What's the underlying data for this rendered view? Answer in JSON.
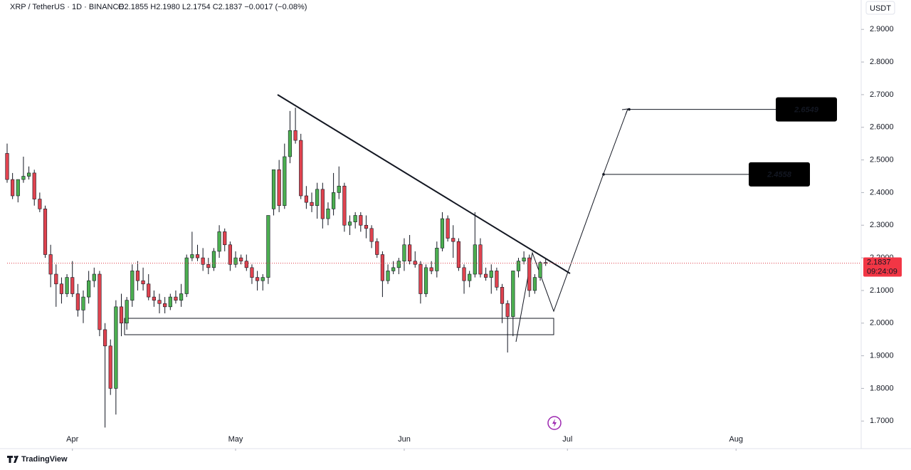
{
  "chart_data": {
    "type": "candlestick",
    "title": "XRP / TetherUS · 1D · BINANCE",
    "ohlc_text": "O2.1855 H2.1980 L2.1754 C2.1837 −0.0017 (−0.08%)",
    "currency": "USDT",
    "up_color": "#4caf50",
    "down_color": "#e0434f",
    "open": [
      2.52,
      2.44,
      2.39,
      2.44,
      2.45,
      2.46,
      2.38,
      2.35,
      2.21,
      2.15,
      2.12,
      2.09,
      2.14,
      2.09,
      2.04,
      2.08,
      2.13,
      2.15,
      1.98,
      1.93,
      1.8,
      2.05,
      2.0,
      2.07,
      2.16,
      2.13,
      2.12,
      2.08,
      2.07,
      2.06,
      2.05,
      2.08,
      2.07,
      2.09,
      2.2,
      2.21,
      2.2,
      2.18,
      2.17,
      2.22,
      2.28,
      2.24,
      2.18,
      2.2,
      2.19,
      2.17,
      2.14,
      2.13,
      2.14,
      2.35,
      2.47,
      2.36,
      2.51,
      2.59,
      2.56,
      2.39,
      2.37,
      2.36,
      2.41,
      2.32,
      2.35,
      2.4,
      2.42,
      2.3,
      2.31,
      2.33,
      2.3,
      2.29,
      2.25,
      2.21,
      2.13,
      2.16,
      2.17,
      2.19,
      2.24,
      2.19,
      2.18,
      2.09,
      2.17,
      2.16,
      2.23,
      2.32,
      2.26,
      2.25,
      2.17,
      2.13,
      2.15,
      2.24,
      2.15,
      2.14,
      2.16,
      2.11,
      2.06,
      2.02,
      2.16,
      2.19,
      2.2,
      2.1,
      2.14,
      2.1855
    ],
    "high": [
      2.55,
      2.46,
      2.44,
      2.51,
      2.48,
      2.47,
      2.4,
      2.36,
      2.24,
      2.18,
      2.14,
      2.15,
      2.19,
      2.12,
      2.1,
      2.16,
      2.17,
      2.16,
      2.0,
      1.95,
      2.07,
      2.09,
      2.08,
      2.18,
      2.19,
      2.17,
      2.15,
      2.1,
      2.09,
      2.08,
      2.09,
      2.1,
      2.12,
      2.21,
      2.28,
      2.24,
      2.23,
      2.2,
      2.23,
      2.3,
      2.29,
      2.25,
      2.22,
      2.21,
      2.21,
      2.18,
      2.16,
      2.15,
      2.33,
      2.47,
      2.5,
      2.55,
      2.65,
      2.66,
      2.58,
      2.42,
      2.4,
      2.43,
      2.43,
      2.37,
      2.46,
      2.48,
      2.43,
      2.33,
      2.34,
      2.34,
      2.33,
      2.3,
      2.26,
      2.22,
      2.18,
      2.19,
      2.2,
      2.26,
      2.27,
      2.22,
      2.19,
      2.18,
      2.19,
      2.25,
      2.34,
      2.33,
      2.3,
      2.26,
      2.18,
      2.16,
      2.34,
      2.26,
      2.17,
      2.18,
      2.17,
      2.12,
      2.07,
      2.16,
      2.2,
      2.22,
      2.21,
      2.15,
      2.19,
      2.198
    ],
    "low": [
      2.43,
      2.38,
      2.37,
      2.43,
      2.44,
      2.36,
      2.34,
      2.2,
      2.11,
      2.05,
      2.06,
      2.08,
      2.08,
      2.02,
      2.0,
      2.06,
      2.11,
      1.96,
      1.68,
      1.78,
      1.72,
      1.96,
      1.98,
      2.05,
      2.1,
      2.1,
      2.07,
      2.05,
      2.03,
      2.03,
      2.04,
      2.06,
      2.05,
      2.08,
      2.19,
      2.19,
      2.16,
      2.15,
      2.16,
      2.2,
      2.22,
      2.16,
      2.17,
      2.18,
      2.16,
      2.12,
      2.1,
      2.1,
      2.12,
      2.33,
      2.34,
      2.35,
      2.49,
      2.55,
      2.38,
      2.35,
      2.34,
      2.32,
      2.29,
      2.3,
      2.33,
      2.38,
      2.28,
      2.27,
      2.29,
      2.28,
      2.26,
      2.23,
      2.2,
      2.08,
      2.12,
      2.15,
      2.15,
      2.16,
      2.18,
      2.17,
      2.06,
      2.08,
      2.15,
      2.14,
      2.22,
      2.25,
      2.2,
      2.16,
      2.09,
      2.11,
      2.14,
      2.14,
      2.13,
      2.09,
      2.1,
      2.0,
      1.91,
      1.96,
      2.14,
      2.18,
      2.08,
      2.09,
      2.13,
      2.1754
    ],
    "close": [
      2.44,
      2.39,
      2.44,
      2.45,
      2.46,
      2.38,
      2.35,
      2.21,
      2.15,
      2.12,
      2.09,
      2.14,
      2.09,
      2.04,
      2.08,
      2.13,
      2.15,
      1.98,
      1.93,
      1.8,
      2.05,
      2.0,
      2.07,
      2.16,
      2.13,
      2.12,
      2.08,
      2.07,
      2.06,
      2.05,
      2.08,
      2.07,
      2.09,
      2.2,
      2.21,
      2.2,
      2.18,
      2.17,
      2.22,
      2.28,
      2.24,
      2.18,
      2.2,
      2.19,
      2.17,
      2.14,
      2.13,
      2.14,
      2.33,
      2.47,
      2.36,
      2.51,
      2.59,
      2.56,
      2.39,
      2.37,
      2.36,
      2.41,
      2.32,
      2.35,
      2.4,
      2.42,
      2.3,
      2.31,
      2.33,
      2.3,
      2.29,
      2.25,
      2.21,
      2.13,
      2.16,
      2.17,
      2.19,
      2.24,
      2.19,
      2.18,
      2.09,
      2.17,
      2.16,
      2.23,
      2.32,
      2.26,
      2.25,
      2.17,
      2.13,
      2.15,
      2.24,
      2.15,
      2.14,
      2.16,
      2.11,
      2.06,
      2.02,
      2.16,
      2.19,
      2.2,
      2.1,
      2.14,
      2.1855,
      2.1837
    ],
    "xlim": [
      0,
      157
    ],
    "xticks": [
      {
        "value": 12,
        "label": "Apr"
      },
      {
        "value": 42,
        "label": "May"
      },
      {
        "value": 73,
        "label": "Jun"
      },
      {
        "value": 103,
        "label": "Jul"
      },
      {
        "value": 134,
        "label": "Aug"
      }
    ],
    "ylim": [
      1.67,
      2.99
    ],
    "yticks": [
      {
        "value": 1.7,
        "label": "1.7000"
      },
      {
        "value": 1.8,
        "label": "1.8000"
      },
      {
        "value": 1.9,
        "label": "1.9000"
      },
      {
        "value": 2.0,
        "label": "2.0000"
      },
      {
        "value": 2.1,
        "label": "2.1000"
      },
      {
        "value": 2.2,
        "label": "2.2000"
      },
      {
        "value": 2.3,
        "label": "2.3000"
      },
      {
        "value": 2.4,
        "label": "2.4000"
      },
      {
        "value": 2.5,
        "label": "2.5000"
      },
      {
        "value": 2.6,
        "label": "2.6000"
      },
      {
        "value": 2.7,
        "label": "2.7000"
      },
      {
        "value": 2.8,
        "label": "2.8000"
      },
      {
        "value": 2.9,
        "label": "2.9000"
      }
    ],
    "last_price": 2.1837,
    "countdown": "09:24:09",
    "targets": [
      2.4558,
      2.6549
    ],
    "brand": "TradingView"
  }
}
